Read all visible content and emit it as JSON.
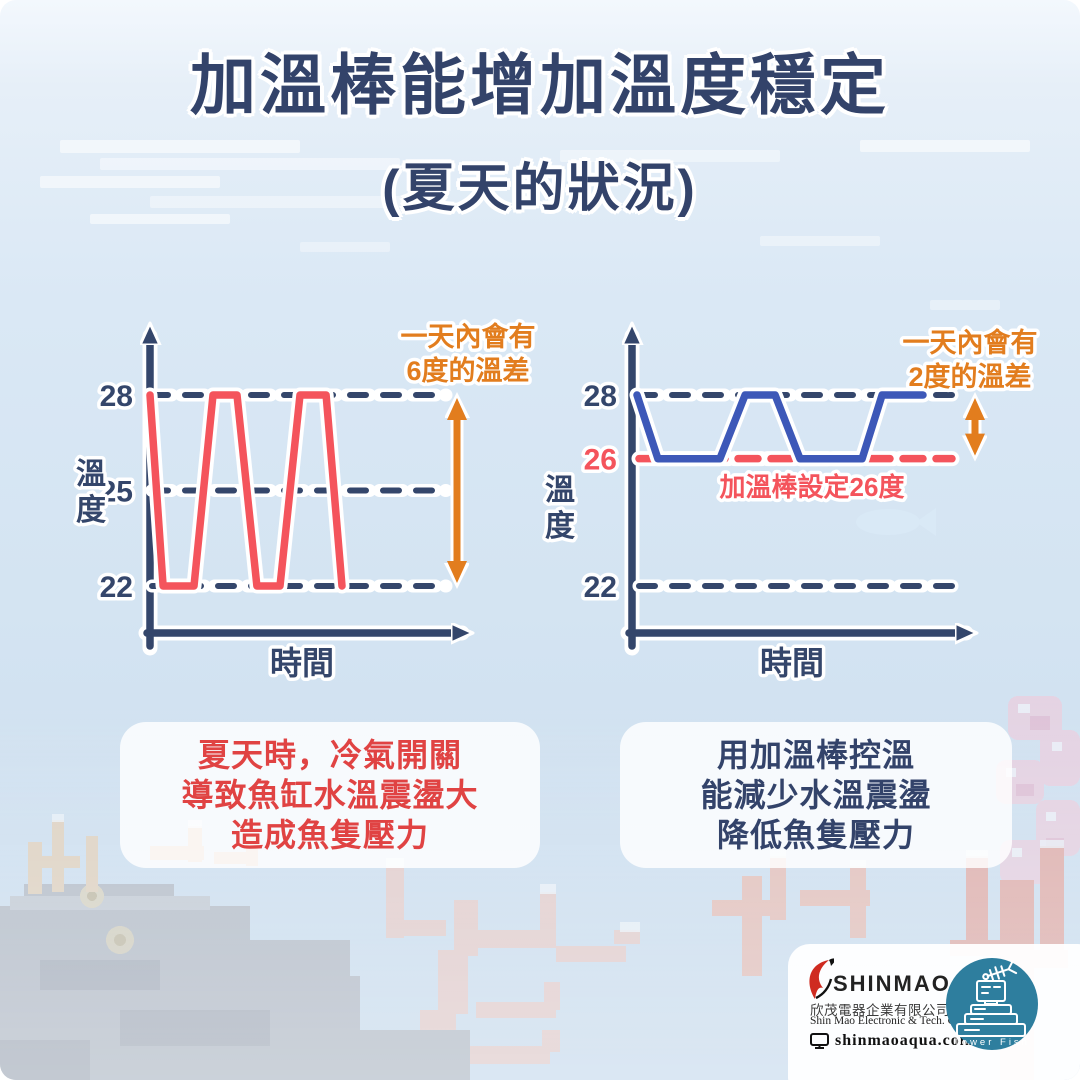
{
  "title": {
    "main": "加溫棒能增加溫度穩定",
    "subtitle": "(夏天的狀況)"
  },
  "colors": {
    "navy": "#34466b",
    "line_red": "#f4545c",
    "line_blue": "#3d58b8",
    "orange": "#e27d1e",
    "caption_red": "#e04343",
    "setpoint_red": "#f4545c",
    "brand_teal": "#2e7e9e"
  },
  "chart_data": [
    {
      "type": "line",
      "ylabel": "溫度",
      "ylabel_stack": [
        "溫",
        "度"
      ],
      "xlabel": "時間",
      "ylim": [
        20,
        30
      ],
      "yticks": [
        {
          "value": 28,
          "dashed": true
        },
        {
          "value": 25,
          "dashed": true
        },
        {
          "value": 22,
          "dashed": true
        }
      ],
      "annotation_lines": [
        "一天內會有",
        "6度的溫差"
      ],
      "range_arrow": {
        "from": 28,
        "to": 22
      },
      "series": [
        {
          "color": "#f4545c",
          "t": [
            0,
            0.068,
            0.229,
            0.328,
            0.453,
            0.557,
            0.677,
            0.781,
            0.917,
            1
          ],
          "temp": [
            28,
            22,
            22,
            28,
            28,
            22,
            22,
            28,
            28,
            22
          ]
        }
      ]
    },
    {
      "type": "line",
      "ylabel": "溫度",
      "ylabel_stack": [
        "溫",
        "度"
      ],
      "xlabel": "時間",
      "ylim": [
        20,
        30
      ],
      "yticks": [
        {
          "value": 28,
          "dashed": true
        },
        {
          "value": 26,
          "dashed": true,
          "color": "red"
        },
        {
          "value": 22,
          "dashed": true
        }
      ],
      "annotation_lines": [
        "一天內會有",
        "2度的溫差"
      ],
      "range_arrow": {
        "from": 28,
        "to": 26
      },
      "setpoint": {
        "value": 26,
        "label": "加溫棒設定26度"
      },
      "series": [
        {
          "color": "#3d58b8",
          "t": [
            0,
            0.073,
            0.29,
            0.378,
            0.483,
            0.57,
            0.787,
            0.857,
            1
          ],
          "temp": [
            28,
            26,
            26,
            28,
            28,
            26,
            26,
            28,
            28
          ]
        }
      ]
    }
  ],
  "captions": {
    "left": {
      "lines": [
        "夏天時，冷氣開關",
        "導致魚缸水溫震盪大",
        "造成魚隻壓力"
      ]
    },
    "right": {
      "lines": [
        "用加溫棒控溫",
        "能減少水溫震盪",
        "降低魚隻壓力"
      ]
    }
  },
  "footer": {
    "brand": {
      "wordmark": "SHINMAO",
      "company_zh": "欣茂電器企業有限公司",
      "company_en": "Shin Mao Electronic & Tech. Co., Ltd.",
      "website": "shinmaoaqua.com"
    },
    "partner": {
      "name": "Tower Fish"
    }
  }
}
